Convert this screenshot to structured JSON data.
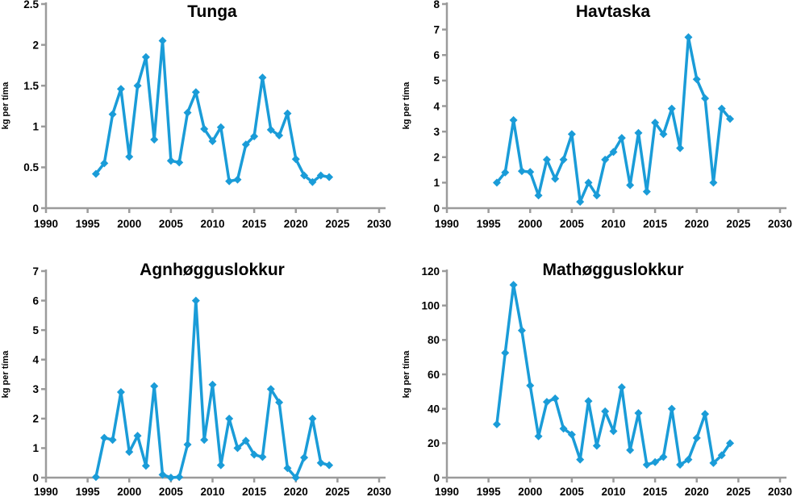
{
  "page": {
    "background": "#ffffff"
  },
  "style": {
    "line_color": "#1a9cd8",
    "marker_color": "#1a9cd8",
    "axis_color": "#9b9b9b",
    "text_color": "#000000"
  },
  "chart_data": [
    {
      "type": "line",
      "title": "Tunga",
      "ylabel": "kg per tíma",
      "xlabel": "",
      "xlim": [
        1990,
        2030
      ],
      "x_ticks": [
        1990,
        1995,
        2000,
        2005,
        2010,
        2015,
        2020,
        2025,
        2030
      ],
      "ylim": [
        0,
        2.5
      ],
      "y_ticks": [
        0,
        0.5,
        1,
        1.5,
        2,
        2.5
      ],
      "grid": false,
      "legend": "none",
      "x": [
        1996,
        1997,
        1998,
        1999,
        2000,
        2001,
        2002,
        2003,
        2004,
        2005,
        2006,
        2007,
        2008,
        2009,
        2010,
        2011,
        2012,
        2013,
        2014,
        2015,
        2016,
        2017,
        2018,
        2019,
        2020,
        2021,
        2022,
        2023,
        2024
      ],
      "values": [
        0.42,
        0.55,
        1.15,
        1.46,
        0.63,
        1.5,
        1.85,
        0.84,
        2.05,
        0.58,
        0.56,
        1.17,
        1.42,
        0.97,
        0.82,
        0.99,
        0.33,
        0.35,
        0.78,
        0.88,
        1.6,
        0.96,
        0.89,
        1.16,
        0.6,
        0.4,
        0.32,
        0.4,
        0.38
      ]
    },
    {
      "type": "line",
      "title": "Havtaska",
      "ylabel": "kg per tíma",
      "xlabel": "",
      "xlim": [
        1990,
        2030
      ],
      "x_ticks": [
        1990,
        1995,
        2000,
        2005,
        2010,
        2015,
        2020,
        2025,
        2030
      ],
      "ylim": [
        0,
        8
      ],
      "y_ticks": [
        0,
        1,
        2,
        3,
        4,
        5,
        6,
        7,
        8
      ],
      "grid": false,
      "legend": "none",
      "x": [
        1996,
        1997,
        1998,
        1999,
        2000,
        2001,
        2002,
        2003,
        2004,
        2005,
        2006,
        2007,
        2008,
        2009,
        2010,
        2011,
        2012,
        2013,
        2014,
        2015,
        2016,
        2017,
        2018,
        2019,
        2020,
        2021,
        2022,
        2023,
        2024
      ],
      "values": [
        1.0,
        1.4,
        3.45,
        1.45,
        1.42,
        0.5,
        1.9,
        1.15,
        1.9,
        2.9,
        0.25,
        1.0,
        0.5,
        1.9,
        2.2,
        2.75,
        0.9,
        2.95,
        0.65,
        3.35,
        2.9,
        3.9,
        2.35,
        6.7,
        5.05,
        4.3,
        1.0,
        3.9,
        3.5
      ]
    },
    {
      "type": "line",
      "title": "Agnhøgguslokkur",
      "ylabel": "kg per tíma",
      "xlabel": "",
      "xlim": [
        1990,
        2030
      ],
      "x_ticks": [
        1990,
        1995,
        2000,
        2005,
        2010,
        2015,
        2020,
        2025,
        2030
      ],
      "ylim": [
        0,
        7
      ],
      "y_ticks": [
        0,
        1,
        2,
        3,
        4,
        5,
        6,
        7
      ],
      "grid": false,
      "legend": "none",
      "x": [
        1996,
        1997,
        1998,
        1999,
        2000,
        2001,
        2002,
        2003,
        2004,
        2005,
        2006,
        2007,
        2008,
        2009,
        2010,
        2011,
        2012,
        2013,
        2014,
        2015,
        2016,
        2017,
        2018,
        2019,
        2020,
        2021,
        2022,
        2023,
        2024
      ],
      "values": [
        0.02,
        1.35,
        1.28,
        2.9,
        0.87,
        1.42,
        0.4,
        3.1,
        0.1,
        0.0,
        0.02,
        1.12,
        6.0,
        1.28,
        3.15,
        0.42,
        2.0,
        1.0,
        1.25,
        0.78,
        0.7,
        3.0,
        2.55,
        0.32,
        0.0,
        0.68,
        2.0,
        0.5,
        0.42
      ]
    },
    {
      "type": "line",
      "title": "Mathøgguslokkur",
      "ylabel": "kg per tíma",
      "xlabel": "",
      "xlim": [
        1990,
        2030
      ],
      "x_ticks": [
        1990,
        1995,
        2000,
        2005,
        2010,
        2015,
        2020,
        2025,
        2030
      ],
      "ylim": [
        0,
        120
      ],
      "y_ticks": [
        0,
        20,
        40,
        60,
        80,
        100,
        120
      ],
      "grid": false,
      "legend": "none",
      "x": [
        1996,
        1997,
        1998,
        1999,
        2000,
        2001,
        2002,
        2003,
        2004,
        2005,
        2006,
        2007,
        2008,
        2009,
        2010,
        2011,
        2012,
        2013,
        2014,
        2015,
        2016,
        2017,
        2018,
        2019,
        2020,
        2021,
        2022,
        2023,
        2024
      ],
      "values": [
        31,
        72.5,
        112,
        85.5,
        53.5,
        24,
        44,
        46,
        28.5,
        25,
        10.5,
        44.5,
        18.5,
        38.5,
        27,
        52.5,
        16,
        37.5,
        7.5,
        9,
        12,
        40,
        7.5,
        10.5,
        23,
        37,
        8.5,
        13,
        20
      ]
    }
  ]
}
